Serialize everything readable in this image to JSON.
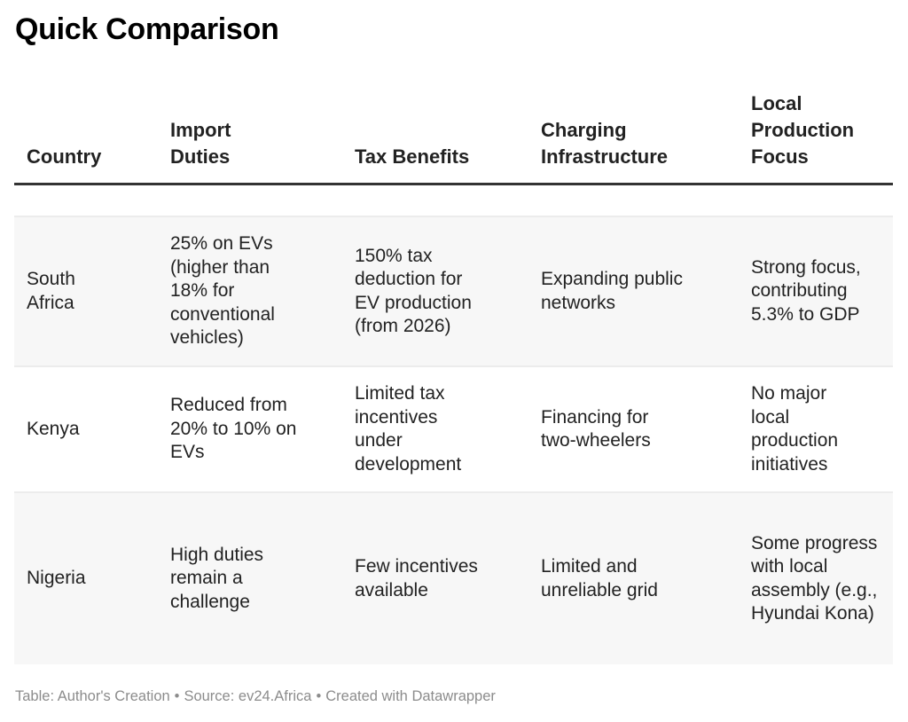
{
  "title": "Quick Comparison",
  "table": {
    "columns": [
      "Country",
      "Import Duties",
      "Tax Benefits",
      "Charging Infrastructure",
      "Local Production Focus"
    ],
    "rows": [
      {
        "country": "South Africa",
        "import_duties": "25% on EVs (higher than 18% for conventional vehicles)",
        "tax_benefits": "150% tax deduction for EV production (from 2026)",
        "charging_infrastructure": "Expanding public networks",
        "local_production_focus": "Strong focus, contributing 5.3% to GDP"
      },
      {
        "country": "Kenya",
        "import_duties": "Reduced from 20% to 10% on EVs",
        "tax_benefits": "Limited tax incentives under development",
        "charging_infrastructure": "Financing for two-wheelers",
        "local_production_focus": "No major local production initiatives"
      },
      {
        "country": "Nigeria",
        "import_duties": "High duties remain a challenge",
        "tax_benefits": "Few incentives available",
        "charging_infrastructure": "Limited and unreliable grid",
        "local_production_focus": "Some progress with local assembly (e.g., Hyundai Kona)"
      }
    ]
  },
  "footer": {
    "table_credit": "Table: Author's Creation",
    "separator": "•",
    "source": "Source: ev24.Africa",
    "created_with": "Created with Datawrapper"
  },
  "colors": {
    "header_border": "#333333",
    "row_shade": "#f7f7f7",
    "row_border": "#ececec",
    "footer_text": "#8c8c8c"
  }
}
